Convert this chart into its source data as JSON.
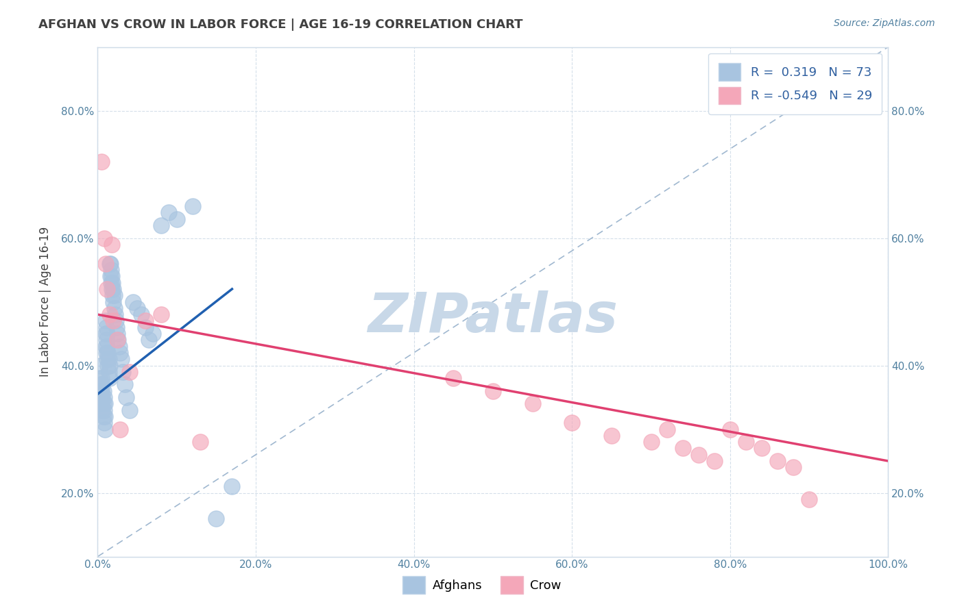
{
  "title": "AFGHAN VS CROW IN LABOR FORCE | AGE 16-19 CORRELATION CHART",
  "source": "Source: ZipAtlas.com",
  "xlabel": "",
  "ylabel": "In Labor Force | Age 16-19",
  "xlim": [
    0.0,
    1.0
  ],
  "ylim": [
    0.1,
    0.9
  ],
  "xticks": [
    0.0,
    0.2,
    0.4,
    0.6,
    0.8,
    1.0
  ],
  "yticks": [
    0.2,
    0.4,
    0.6,
    0.8
  ],
  "xtick_labels": [
    "0.0%",
    "20.0%",
    "40.0%",
    "60.0%",
    "80.0%",
    "100.0%"
  ],
  "ytick_labels": [
    "20.0%",
    "40.0%",
    "60.0%",
    "80.0%"
  ],
  "right_ytick_labels": [
    "20.0%",
    "40.0%",
    "60.0%",
    "80.0%"
  ],
  "blue_R": 0.319,
  "blue_N": 73,
  "pink_R": -0.549,
  "pink_N": 29,
  "blue_color": "#a8c4e0",
  "pink_color": "#f4a7b9",
  "blue_line_color": "#2060b0",
  "pink_line_color": "#e04070",
  "ref_line_color": "#a0b8d0",
  "background_color": "#ffffff",
  "grid_color": "#d0dce8",
  "title_color": "#404040",
  "watermark_text": "ZIPatlas",
  "watermark_color": "#c8d8e8",
  "legend_label_blue": "Afghans",
  "legend_label_pink": "Crow",
  "blue_x": [
    0.002,
    0.003,
    0.003,
    0.004,
    0.004,
    0.005,
    0.005,
    0.005,
    0.006,
    0.006,
    0.006,
    0.007,
    0.007,
    0.007,
    0.008,
    0.008,
    0.008,
    0.009,
    0.009,
    0.009,
    0.01,
    0.01,
    0.01,
    0.011,
    0.011,
    0.011,
    0.012,
    0.012,
    0.012,
    0.013,
    0.013,
    0.014,
    0.014,
    0.015,
    0.015,
    0.015,
    0.016,
    0.016,
    0.017,
    0.017,
    0.018,
    0.018,
    0.019,
    0.019,
    0.02,
    0.02,
    0.021,
    0.021,
    0.022,
    0.023,
    0.024,
    0.025,
    0.026,
    0.027,
    0.028,
    0.03,
    0.032,
    0.034,
    0.036,
    0.04,
    0.045,
    0.05,
    0.055,
    0.06,
    0.065,
    0.07,
    0.08,
    0.09,
    0.1,
    0.12,
    0.15,
    0.17,
    0.9
  ],
  "blue_y": [
    0.38,
    0.36,
    0.4,
    0.35,
    0.37,
    0.34,
    0.36,
    0.38,
    0.33,
    0.35,
    0.37,
    0.32,
    0.34,
    0.36,
    0.31,
    0.33,
    0.35,
    0.3,
    0.32,
    0.34,
    0.43,
    0.45,
    0.47,
    0.42,
    0.44,
    0.46,
    0.41,
    0.43,
    0.45,
    0.4,
    0.42,
    0.39,
    0.41,
    0.38,
    0.4,
    0.56,
    0.54,
    0.56,
    0.53,
    0.55,
    0.52,
    0.54,
    0.51,
    0.53,
    0.5,
    0.52,
    0.49,
    0.51,
    0.48,
    0.47,
    0.46,
    0.45,
    0.44,
    0.43,
    0.42,
    0.41,
    0.39,
    0.37,
    0.35,
    0.33,
    0.5,
    0.49,
    0.48,
    0.46,
    0.44,
    0.45,
    0.62,
    0.64,
    0.63,
    0.65,
    0.16,
    0.21,
    0.82
  ],
  "pink_x": [
    0.005,
    0.008,
    0.01,
    0.012,
    0.015,
    0.018,
    0.02,
    0.025,
    0.028,
    0.04,
    0.06,
    0.08,
    0.13,
    0.45,
    0.5,
    0.55,
    0.6,
    0.65,
    0.7,
    0.72,
    0.74,
    0.76,
    0.78,
    0.8,
    0.82,
    0.84,
    0.86,
    0.88,
    0.9
  ],
  "pink_y": [
    0.72,
    0.6,
    0.56,
    0.52,
    0.48,
    0.59,
    0.47,
    0.44,
    0.3,
    0.39,
    0.47,
    0.48,
    0.28,
    0.38,
    0.36,
    0.34,
    0.31,
    0.29,
    0.28,
    0.3,
    0.27,
    0.26,
    0.25,
    0.3,
    0.28,
    0.27,
    0.25,
    0.24,
    0.19
  ],
  "blue_line_x": [
    0.0,
    0.17
  ],
  "blue_line_y": [
    0.355,
    0.52
  ],
  "pink_line_x": [
    0.0,
    1.0
  ],
  "pink_line_y": [
    0.48,
    0.25
  ]
}
